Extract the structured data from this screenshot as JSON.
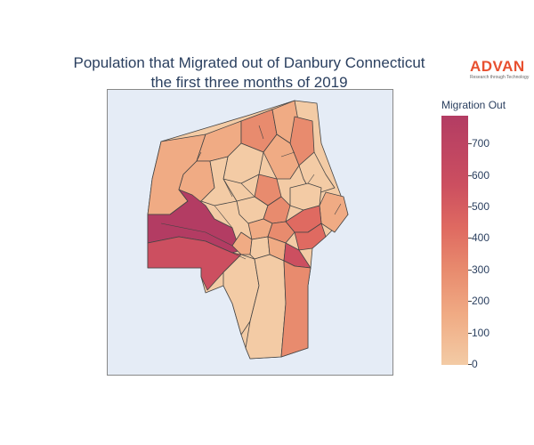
{
  "title_line1": "Population that Migrated out of Danbury Connecticut",
  "title_line2": "the first three months of 2019",
  "brand": {
    "name": "ADVAN",
    "tagline": "Research through Technology"
  },
  "colorbar": {
    "title": "Migration Out",
    "ticks": [
      "0",
      "100",
      "200",
      "300",
      "400",
      "500",
      "600",
      "700"
    ],
    "min": 0,
    "max": 790,
    "colors": [
      "#f3cba5",
      "#f0ab84",
      "#e88b6e",
      "#df6a61",
      "#cc4f60",
      "#b33c63"
    ]
  },
  "map": {
    "background": "#e5ecf6",
    "border": "#444444"
  }
}
